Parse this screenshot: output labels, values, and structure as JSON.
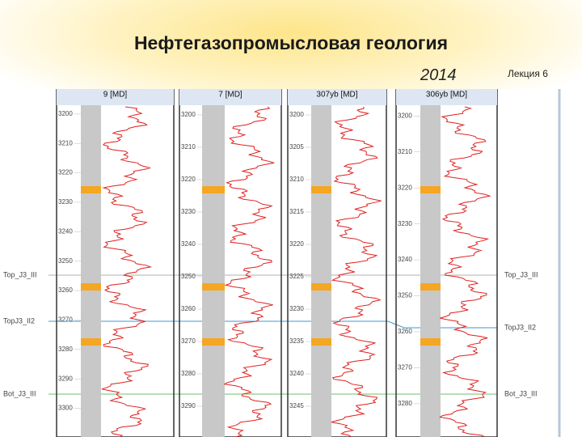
{
  "header": {
    "title": "Нефтегазопромысловая геология",
    "year": "2014",
    "lecture": "Лекция 6"
  },
  "wells": [
    {
      "name": "9 [MD]",
      "depths": [
        "3200",
        "3210",
        "3220",
        "3230",
        "3240",
        "3250",
        "3260",
        "3270",
        "3280",
        "3290",
        "3300"
      ]
    },
    {
      "name": "7 [MD]",
      "depths": [
        "3200",
        "3210",
        "3220",
        "3230",
        "3240",
        "3250",
        "3260",
        "3270",
        "3280",
        "3290"
      ]
    },
    {
      "name": "307yb [MD]",
      "depths": [
        "3200",
        "3205",
        "3210",
        "3215",
        "3220",
        "3225",
        "3230",
        "3235",
        "3240",
        "3245"
      ]
    },
    {
      "name": "306yb [MD]",
      "depths": [
        "3200",
        "3210",
        "3220",
        "3230",
        "3240",
        "3250",
        "3260",
        "3270",
        "3280"
      ]
    }
  ],
  "markers": {
    "left": [
      "Top_J3_III",
      "TopJ3_II2",
      "Bot_J3_III"
    ],
    "right": [
      "Top_J3_III",
      "TopJ3_II2",
      "Bot_J3_III"
    ]
  }
}
